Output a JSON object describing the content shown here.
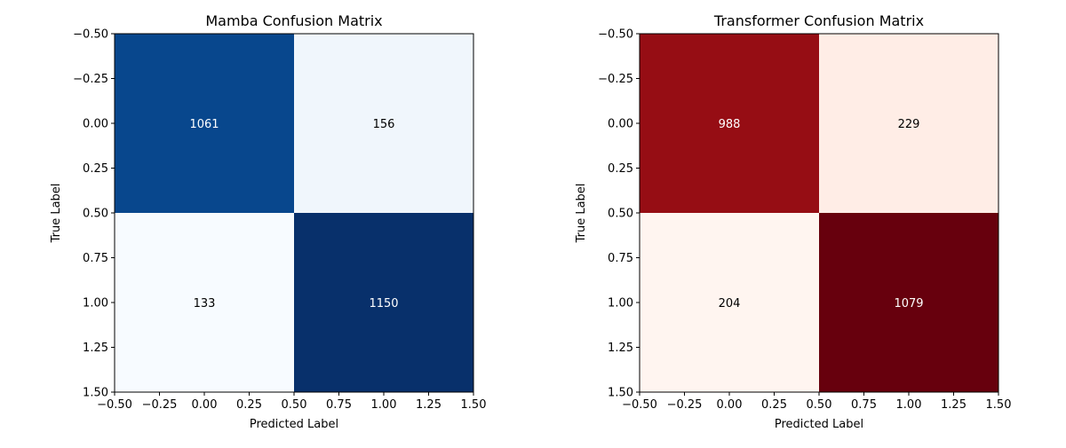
{
  "chart_data": [
    {
      "type": "heatmap",
      "title": "Mamba Confusion Matrix",
      "xlabel": "Predicted Label",
      "ylabel": "True Label",
      "colormap": "Blues",
      "matrix": [
        [
          1061,
          156
        ],
        [
          133,
          1150
        ]
      ],
      "xlim": [
        -0.5,
        1.5
      ],
      "ylim": [
        1.5,
        -0.5
      ],
      "xticks": [
        "−0.50",
        "−0.25",
        "0.00",
        "0.25",
        "0.50",
        "0.75",
        "1.00",
        "1.25",
        "1.50"
      ],
      "yticks": [
        "−0.50",
        "−0.25",
        "0.00",
        "0.25",
        "0.50",
        "0.75",
        "1.00",
        "1.25",
        "1.50"
      ],
      "cell_colors": [
        [
          "#08478d",
          "#f0f6fc"
        ],
        [
          "#f7fbff",
          "#08306b"
        ]
      ],
      "text_colors": [
        [
          "#ffffff",
          "#000000"
        ],
        [
          "#000000",
          "#ffffff"
        ]
      ]
    },
    {
      "type": "heatmap",
      "title": "Transformer Confusion Matrix",
      "xlabel": "Predicted Label",
      "ylabel": "True Label",
      "colormap": "Reds",
      "matrix": [
        [
          988,
          229
        ],
        [
          204,
          1079
        ]
      ],
      "xlim": [
        -0.5,
        1.5
      ],
      "ylim": [
        1.5,
        -0.5
      ],
      "xticks": [
        "−0.50",
        "−0.25",
        "0.00",
        "0.25",
        "0.50",
        "0.75",
        "1.00",
        "1.25",
        "1.50"
      ],
      "yticks": [
        "−0.50",
        "−0.25",
        "0.00",
        "0.25",
        "0.50",
        "0.75",
        "1.00",
        "1.25",
        "1.50"
      ],
      "cell_colors": [
        [
          "#960d14",
          "#ffede6"
        ],
        [
          "#fff5f0",
          "#67000d"
        ]
      ],
      "text_colors": [
        [
          "#ffffff",
          "#000000"
        ],
        [
          "#000000",
          "#ffffff"
        ]
      ]
    }
  ]
}
